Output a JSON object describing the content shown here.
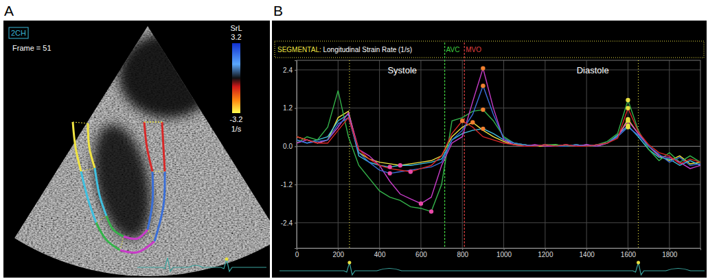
{
  "chart_data": [
    {
      "type": "image",
      "panel": "A",
      "title": "2CH",
      "subtitle": "Frame = 51",
      "colors": [
        "#f0e442",
        "#3fc0e0",
        "#34b34a",
        "#c83cc8",
        "#3a6fd8",
        "#d82828"
      ],
      "colorbar": {
        "title": "SrL",
        "range": [
          -3.2,
          3.2
        ],
        "ticks": [
          3.2,
          -3.2
        ],
        "unit": "1/s"
      }
    },
    {
      "type": "line",
      "panel": "B",
      "title": "SEGMENTAL: Longitudinal Strain Rate (1/s)",
      "x": [
        0,
        50,
        100,
        150,
        200,
        250,
        300,
        350,
        400,
        450,
        500,
        550,
        600,
        650,
        700,
        750,
        800,
        850,
        900,
        950,
        1000,
        1050,
        1100,
        1150,
        1200,
        1250,
        1300,
        1350,
        1400,
        1450,
        1500,
        1550,
        1600,
        1650,
        1700,
        1750,
        1800,
        1850,
        1900,
        1950
      ],
      "xlim": [
        0,
        1950
      ],
      "xticks": [
        0,
        200,
        400,
        600,
        800,
        1000,
        1200,
        1400,
        1600,
        1800
      ],
      "ylim": [
        -3.2,
        2.7
      ],
      "yticks": [
        -2.4,
        -1.2,
        {
          "value": 0,
          "label": "0.0"
        },
        1.2,
        2.4
      ],
      "grid": true,
      "labels": [
        {
          "text": "Systole",
          "x": 510,
          "y": 2.3
        },
        {
          "text": "Diastole",
          "x": 1430,
          "y": 2.3
        }
      ],
      "annotations": [
        {
          "x": 255,
          "color": "#e8e040",
          "line_style": "dotted"
        },
        {
          "x": 715,
          "text": "AVC",
          "color": "#40d040",
          "line_style": "dashed"
        },
        {
          "x": 810,
          "text": "MVO",
          "color": "#e04040",
          "line_style": "dashed"
        },
        {
          "x": 1650,
          "color": "#e8e040",
          "line_style": "dotted"
        }
      ],
      "series": [
        {
          "type": "line",
          "color": "#f0e442",
          "values": [
            0.3,
            0.2,
            0.1,
            0.2,
            0.9,
            1.1,
            -0.2,
            -0.4,
            -0.5,
            -0.55,
            -0.6,
            -0.55,
            -0.5,
            -0.45,
            -0.3,
            0.3,
            0.6,
            0.75,
            0.5,
            0.3,
            0.15,
            0.05,
            0.05,
            0.0,
            0.0,
            0.05,
            0.0,
            0.05,
            0.0,
            0.05,
            0.1,
            0.3,
            0.85,
            0.4,
            0.0,
            -0.3,
            -0.45,
            -0.3,
            -0.55,
            -0.5
          ]
        },
        {
          "type": "line",
          "color": "#3fc0e0",
          "values": [
            0.2,
            0.1,
            0.2,
            0.3,
            0.8,
            1.0,
            -0.3,
            -0.5,
            -0.6,
            -0.65,
            -0.6,
            -0.6,
            -0.55,
            -0.5,
            -0.4,
            0.2,
            0.4,
            0.5,
            0.55,
            0.4,
            0.2,
            0.1,
            0.05,
            0.0,
            0.05,
            0.0,
            0.05,
            0.0,
            0.05,
            0.0,
            0.1,
            0.35,
            0.65,
            0.3,
            -0.1,
            -0.35,
            -0.4,
            -0.6,
            -0.45,
            -0.6
          ]
        },
        {
          "type": "line",
          "color": "#34b34a",
          "values": [
            0.1,
            0.3,
            0.2,
            0.6,
            1.75,
            0.3,
            -0.6,
            -1.0,
            -1.4,
            -1.6,
            -1.7,
            -1.9,
            -1.95,
            -2.05,
            -1.2,
            0.8,
            0.9,
            1.1,
            1.15,
            0.8,
            0.3,
            0.1,
            0.05,
            0.0,
            0.05,
            0.05,
            0.0,
            0.05,
            0.0,
            0.05,
            0.15,
            0.4,
            1.45,
            0.5,
            -0.1,
            -0.45,
            -0.2,
            -0.5,
            -0.3,
            -0.5
          ]
        },
        {
          "type": "line",
          "color": "#c83cc8",
          "values": [
            0.1,
            0.2,
            0.1,
            0.2,
            0.6,
            1.05,
            -0.1,
            -0.3,
            -0.6,
            -1.1,
            -1.5,
            -1.65,
            -1.8,
            -1.6,
            -0.6,
            0.1,
            0.3,
            1.4,
            2.45,
            1.2,
            0.2,
            0.05,
            0.0,
            0.05,
            0.0,
            0.0,
            0.05,
            0.0,
            0.05,
            0.0,
            0.1,
            0.3,
            0.8,
            0.4,
            0.0,
            -0.3,
            -0.35,
            -0.5,
            -0.7,
            -0.6
          ]
        },
        {
          "type": "line",
          "color": "#3a6fd8",
          "values": [
            0.2,
            0.1,
            0.15,
            0.2,
            0.7,
            0.9,
            -0.2,
            -0.5,
            -0.75,
            -0.85,
            -0.8,
            -0.75,
            -0.7,
            -0.65,
            -0.5,
            0.2,
            0.5,
            1.0,
            1.9,
            1.0,
            0.25,
            0.1,
            0.05,
            0.0,
            0.05,
            0.0,
            0.0,
            0.05,
            0.0,
            0.05,
            0.1,
            0.3,
            0.6,
            0.35,
            0.0,
            -0.25,
            -0.5,
            -0.35,
            -0.6,
            -0.55
          ]
        },
        {
          "type": "line",
          "color": "#d82828",
          "values": [
            0.3,
            0.2,
            0.1,
            0.1,
            0.5,
            0.9,
            -0.1,
            -0.4,
            -0.6,
            -0.7,
            -0.75,
            -0.8,
            -0.7,
            -0.6,
            -0.3,
            0.4,
            0.8,
            0.6,
            0.3,
            0.2,
            0.1,
            0.05,
            0.0,
            0.0,
            0.05,
            0.0,
            0.05,
            0.0,
            0.0,
            0.05,
            0.1,
            0.25,
            1.2,
            0.45,
            0.05,
            -0.2,
            -0.3,
            -0.55,
            -0.4,
            -0.5
          ]
        },
        {
          "type": "scatter",
          "marker": "circle",
          "color": "#e84aa8",
          "x": [
            500,
            450,
            650,
            600,
            450,
            550
          ],
          "values": [
            -0.6,
            -0.65,
            -2.05,
            -1.8,
            -0.85,
            -0.8
          ]
        },
        {
          "type": "scatter",
          "marker": "circle",
          "color": "#f08030",
          "x": [
            850,
            900,
            900,
            900,
            900,
            800
          ],
          "values": [
            0.75,
            0.55,
            1.15,
            2.45,
            1.9,
            0.8
          ]
        },
        {
          "type": "scatter",
          "marker": "circle",
          "color": "#e8e040",
          "x": [
            1600,
            1600,
            1600,
            1600,
            1600,
            1600
          ],
          "values": [
            0.85,
            0.65,
            1.45,
            0.8,
            0.6,
            1.2
          ]
        }
      ]
    }
  ]
}
